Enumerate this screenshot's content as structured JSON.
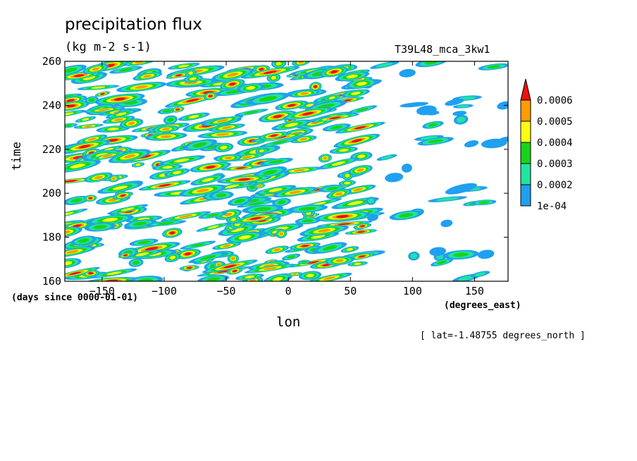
{
  "title": "precipitation flux",
  "units": "(kg m-2 s-1)",
  "run_label": "T39L48_mca_3kw1",
  "lat_info": "[ lat=-1.48755 degrees_north ]",
  "chart_data": {
    "type": "heatmap",
    "xlabel": "lon",
    "x_units": "(degrees_east)",
    "ylabel": "time",
    "y_units": "(days since 0000-01-01)",
    "xlim": [
      -180,
      177
    ],
    "ylim": [
      160,
      260
    ],
    "x_ticks": [
      -150,
      -100,
      -50,
      0,
      50,
      100,
      150
    ],
    "y_ticks": [
      160,
      180,
      200,
      220,
      240,
      260
    ],
    "colorbar": {
      "levels": [
        0.0001,
        0.0002,
        0.0003,
        0.0004,
        0.0005,
        0.0006
      ],
      "labels": [
        "1e-04",
        "0.0002",
        "0.0003",
        "0.0004",
        "0.0005",
        "0.0006"
      ],
      "colors": [
        "#1fa0f0",
        "#20e4a0",
        "#18d418",
        "#ffff10",
        "#ff9b00",
        "#ee1010"
      ],
      "extend": "max"
    }
  }
}
